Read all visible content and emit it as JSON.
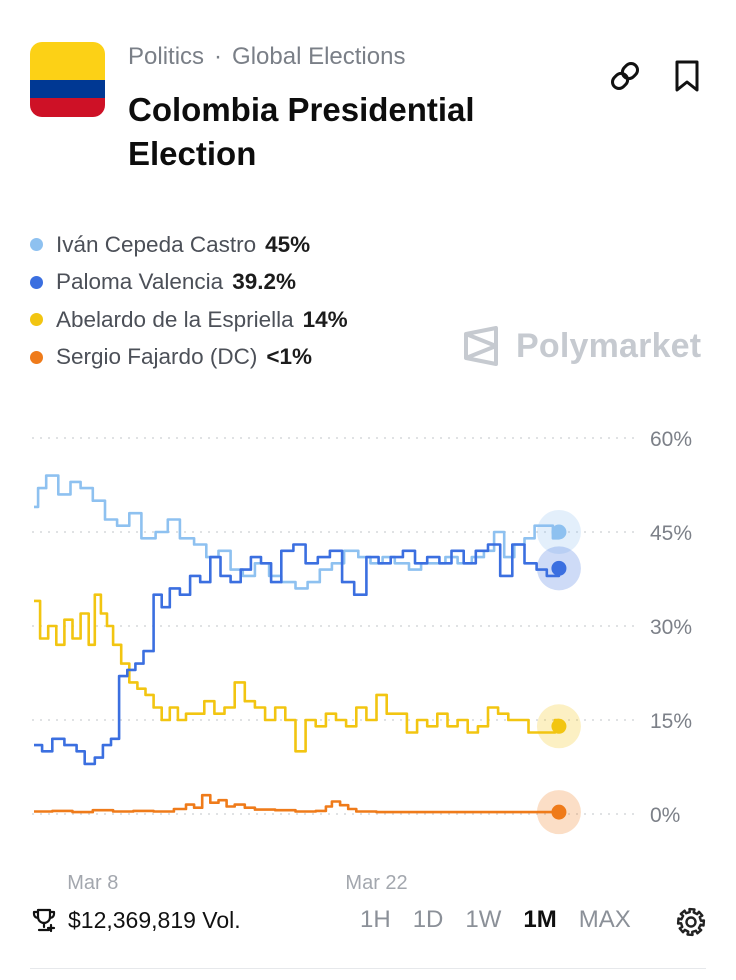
{
  "breadcrumb": {
    "category": "Politics",
    "separator": "·",
    "subcategory": "Global Elections"
  },
  "title": "Colombia Presidential Election",
  "icons": {
    "flag": "colombia-flag-icon",
    "link": "link-icon",
    "bookmark": "bookmark-icon",
    "trophy": "trophy-icon",
    "settings": "gear-icon",
    "watermark": "polymarket-logo-icon"
  },
  "flag_colors": [
    "#FCD116",
    "#003893",
    "#CE1126"
  ],
  "watermark": "Polymarket",
  "legend": [
    {
      "name": "Iván Cepeda Castro",
      "pct": "45%",
      "color": "#8EC1F0"
    },
    {
      "name": "Paloma Valencia",
      "pct": "39.2%",
      "color": "#3B6FE0"
    },
    {
      "name": "Abelardo de la Espriella",
      "pct": "14%",
      "color": "#F2C511"
    },
    {
      "name": "Sergio Fajardo (DC)",
      "pct": "<1%",
      "color": "#EF7B1A"
    }
  ],
  "footer": {
    "volume": "$12,369,819 Vol.",
    "ranges": [
      "1H",
      "1D",
      "1W",
      "1M",
      "MAX"
    ],
    "active_range": "1M"
  },
  "chart_data": {
    "type": "line",
    "x_tick_labels": [
      {
        "label": "Mar 8",
        "day": 8
      },
      {
        "label": "Mar 22",
        "day": 22
      }
    ],
    "x_domain_days": [
      5,
      35
    ],
    "y_ticks": [
      60,
      45,
      30,
      15,
      0
    ],
    "y_tick_labels": [
      "60%",
      "45%",
      "30%",
      "15%",
      "0%"
    ],
    "ylim": [
      0,
      60
    ],
    "grid": true,
    "end_markers": true,
    "series": [
      {
        "name": "Iván Cepeda Castro",
        "color": "#8EC1F0",
        "x": [
          5.1,
          5.3,
          5.7,
          6.3,
          6.9,
          7.4,
          8.0,
          8.6,
          9.2,
          9.8,
          10.4,
          11.1,
          11.7,
          12.3,
          13.0,
          13.6,
          14.2,
          14.8,
          15.4,
          16.0,
          16.7,
          17.3,
          18.0,
          18.6,
          19.2,
          19.8,
          20.4,
          21.1,
          21.7,
          22.3,
          22.9,
          23.6,
          24.2,
          24.8,
          25.4,
          26.0,
          26.7,
          27.3,
          27.8,
          28.3,
          28.8,
          29.3,
          29.8,
          30.3,
          30.7,
          31.0
        ],
        "y": [
          49,
          52,
          54,
          51,
          53,
          52,
          50,
          47,
          46,
          48,
          44,
          45,
          47,
          44,
          43,
          41,
          42,
          39,
          38,
          40,
          38,
          37,
          36,
          37,
          39,
          40,
          42,
          41,
          40,
          41,
          40,
          39,
          40,
          40,
          41,
          40,
          41,
          42,
          45,
          41,
          43,
          44,
          46,
          46,
          44,
          45
        ]
      },
      {
        "name": "Paloma Valencia",
        "color": "#3B6FE0",
        "x": [
          5.1,
          5.5,
          6.0,
          6.6,
          7.2,
          7.6,
          8.1,
          8.5,
          8.9,
          9.3,
          9.7,
          10.1,
          10.5,
          11.0,
          11.4,
          11.8,
          12.3,
          12.8,
          13.3,
          13.8,
          14.3,
          14.8,
          15.3,
          15.8,
          16.3,
          16.8,
          17.3,
          17.9,
          18.5,
          19.1,
          19.7,
          20.3,
          20.9,
          21.5,
          22.1,
          22.7,
          23.3,
          23.9,
          24.5,
          25.1,
          25.7,
          26.3,
          26.9,
          27.5,
          28.1,
          28.7,
          29.3,
          29.9,
          30.4,
          30.7,
          31.0
        ],
        "y": [
          11,
          10,
          12,
          11,
          10,
          8,
          9,
          11,
          12,
          22,
          23,
          24,
          26,
          35,
          33,
          36,
          35,
          38,
          37,
          41,
          38,
          37,
          39,
          41,
          40,
          37,
          42,
          43,
          40,
          41,
          42,
          37,
          35,
          41,
          40,
          41,
          42,
          40,
          41,
          40,
          42,
          40,
          42,
          43,
          38,
          43,
          40,
          39,
          38,
          38,
          39.2
        ]
      },
      {
        "name": "Abelardo de la Espriella",
        "color": "#F2C511",
        "x": [
          5.1,
          5.4,
          5.8,
          6.2,
          6.6,
          7.0,
          7.4,
          7.8,
          8.1,
          8.4,
          8.7,
          9.0,
          9.4,
          9.8,
          10.2,
          10.6,
          11.0,
          11.4,
          11.8,
          12.2,
          12.6,
          13.0,
          13.5,
          14.0,
          14.5,
          15.0,
          15.5,
          16.0,
          16.5,
          17.0,
          17.5,
          18.0,
          18.5,
          19.0,
          19.5,
          20.0,
          20.5,
          21.0,
          21.5,
          22.0,
          22.5,
          23.0,
          23.5,
          24.0,
          24.5,
          25.0,
          25.5,
          26.0,
          26.5,
          27.0,
          27.5,
          28.0,
          28.5,
          29.0,
          29.5,
          30.0,
          30.5,
          30.8,
          31.0
        ],
        "y": [
          34,
          28,
          30,
          27,
          31,
          28,
          32,
          27,
          35,
          32,
          30,
          27,
          24,
          21,
          20,
          19,
          17,
          15,
          17,
          15,
          16,
          16,
          18,
          16,
          17,
          21,
          18,
          17,
          15,
          17,
          15,
          10,
          15,
          14,
          16,
          15,
          14,
          17,
          15,
          19,
          16,
          16,
          13,
          15,
          14,
          16,
          14,
          15,
          13,
          14,
          17,
          16,
          15,
          15,
          13,
          13,
          13,
          15,
          14
        ]
      },
      {
        "name": "Sergio Fajardo (DC)",
        "color": "#EF7B1A",
        "x": [
          5.1,
          6.0,
          7.0,
          8.0,
          9.0,
          10.0,
          11.0,
          12.0,
          12.6,
          13.0,
          13.4,
          13.8,
          14.2,
          14.6,
          15.0,
          15.5,
          16.0,
          17.0,
          18.0,
          19.0,
          19.5,
          19.8,
          20.2,
          20.6,
          21.0,
          22.0,
          23.0,
          24.0,
          25.0,
          26.0,
          27.0,
          28.0,
          29.0,
          30.0,
          31.0
        ],
        "y": [
          0.4,
          0.5,
          0.3,
          0.6,
          0.4,
          0.5,
          0.4,
          0.8,
          1.5,
          1.0,
          3.0,
          1.8,
          2.2,
          1.2,
          1.5,
          1.0,
          0.7,
          0.6,
          0.4,
          0.5,
          1.2,
          2.0,
          1.4,
          0.8,
          0.4,
          0.3,
          0.3,
          0.3,
          0.3,
          0.3,
          0.3,
          0.3,
          0.3,
          0.3,
          0.3
        ]
      }
    ]
  }
}
